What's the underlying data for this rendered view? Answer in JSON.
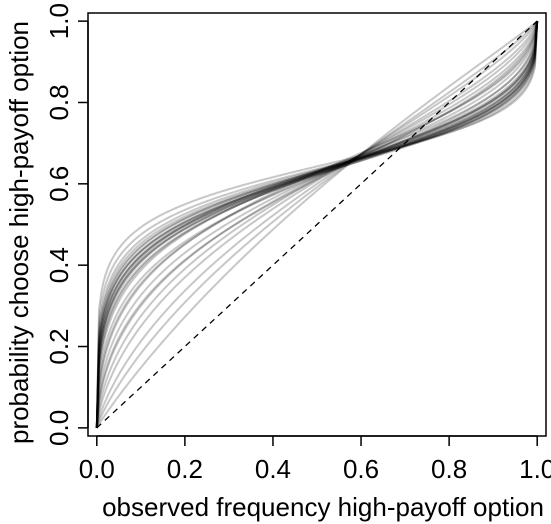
{
  "chart_data": {
    "type": "line",
    "title": "",
    "xlabel": "observed frequency high-payoff option",
    "ylabel": "probability choose high-payoff option",
    "xlim": [
      -0.02,
      1.02
    ],
    "ylim": [
      -0.02,
      1.02
    ],
    "x_ticks": [
      0.0,
      0.2,
      0.4,
      0.6,
      0.8,
      1.0
    ],
    "y_ticks": [
      0.0,
      0.2,
      0.4,
      0.6,
      0.8,
      1.0
    ],
    "x_tick_labels": [
      "0.0",
      "0.2",
      "0.4",
      "0.6",
      "0.8",
      "1.0"
    ],
    "y_tick_labels": [
      "0.0",
      "0.2",
      "0.4",
      "0.6",
      "0.8",
      "1.0"
    ],
    "grid": false,
    "reference_line": {
      "x": [
        0,
        1
      ],
      "y": [
        0,
        1
      ],
      "style": "dashed",
      "color": "#000000"
    },
    "series_color": "#000000",
    "series_opacity": 0.22,
    "curve_family": "probability weighting p(x)=d*x^g/(d*x^g+(1-x)^g); individual curves",
    "series": [
      {
        "params": {
          "d": 1.7,
          "g": 0.34
        }
      },
      {
        "params": {
          "d": 1.68,
          "g": 0.36
        }
      },
      {
        "params": {
          "d": 1.7,
          "g": 0.38
        }
      },
      {
        "params": {
          "d": 1.68,
          "g": 0.4
        }
      },
      {
        "params": {
          "d": 1.65,
          "g": 0.37
        }
      },
      {
        "params": {
          "d": 1.72,
          "g": 0.35
        }
      },
      {
        "params": {
          "d": 1.66,
          "g": 0.42
        }
      },
      {
        "params": {
          "d": 1.7,
          "g": 0.45
        }
      },
      {
        "params": {
          "d": 1.64,
          "g": 0.39
        }
      },
      {
        "params": {
          "d": 1.69,
          "g": 0.41
        }
      },
      {
        "params": {
          "d": 1.71,
          "g": 0.33
        }
      },
      {
        "params": {
          "d": 1.67,
          "g": 0.43
        }
      },
      {
        "params": {
          "d": 1.7,
          "g": 0.36
        }
      },
      {
        "params": {
          "d": 1.68,
          "g": 0.38
        }
      },
      {
        "params": {
          "d": 1.66,
          "g": 0.35
        }
      },
      {
        "params": {
          "d": 1.72,
          "g": 0.4
        }
      },
      {
        "params": {
          "d": 1.75,
          "g": 0.3
        }
      },
      {
        "params": {
          "d": 1.65,
          "g": 0.5
        }
      },
      {
        "params": {
          "d": 1.62,
          "g": 0.55
        }
      },
      {
        "params": {
          "d": 1.6,
          "g": 0.6
        }
      },
      {
        "params": {
          "d": 1.58,
          "g": 0.65
        }
      },
      {
        "params": {
          "d": 1.55,
          "g": 0.7
        }
      },
      {
        "params": {
          "d": 1.5,
          "g": 0.78
        }
      },
      {
        "params": {
          "d": 1.45,
          "g": 0.85
        }
      },
      {
        "params": {
          "d": 1.4,
          "g": 0.95
        }
      },
      {
        "params": {
          "d": 1.62,
          "g": 0.47
        }
      },
      {
        "params": {
          "d": 1.8,
          "g": 0.28
        }
      },
      {
        "params": {
          "d": 1.73,
          "g": 0.32
        }
      },
      {
        "params": {
          "d": 1.69,
          "g": 0.52
        }
      },
      {
        "params": {
          "d": 1.57,
          "g": 0.58
        }
      }
    ]
  }
}
